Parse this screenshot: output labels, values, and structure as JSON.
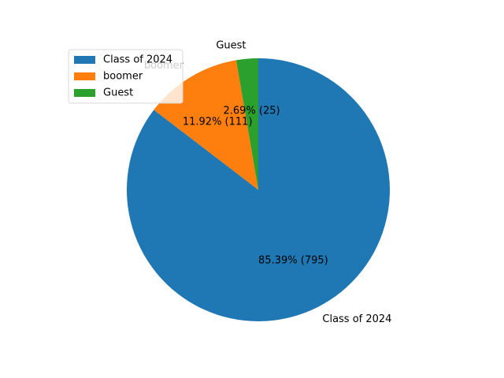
{
  "chart_data": {
    "type": "pie",
    "title": "",
    "legend_position": "upper-left",
    "start_angle_deg": 90,
    "direction": "clockwise",
    "slices": [
      {
        "label": "Class of 2024",
        "value": 795,
        "percent_label": "85.39%  (795)",
        "color": "#1f77b4"
      },
      {
        "label": "boomer",
        "value": 111,
        "percent_label": "11.92%  (111)",
        "color": "#ff7f0e"
      },
      {
        "label": "Guest",
        "value": 25,
        "percent_label": "2.69%  (25)",
        "color": "#2ca02c"
      }
    ]
  }
}
